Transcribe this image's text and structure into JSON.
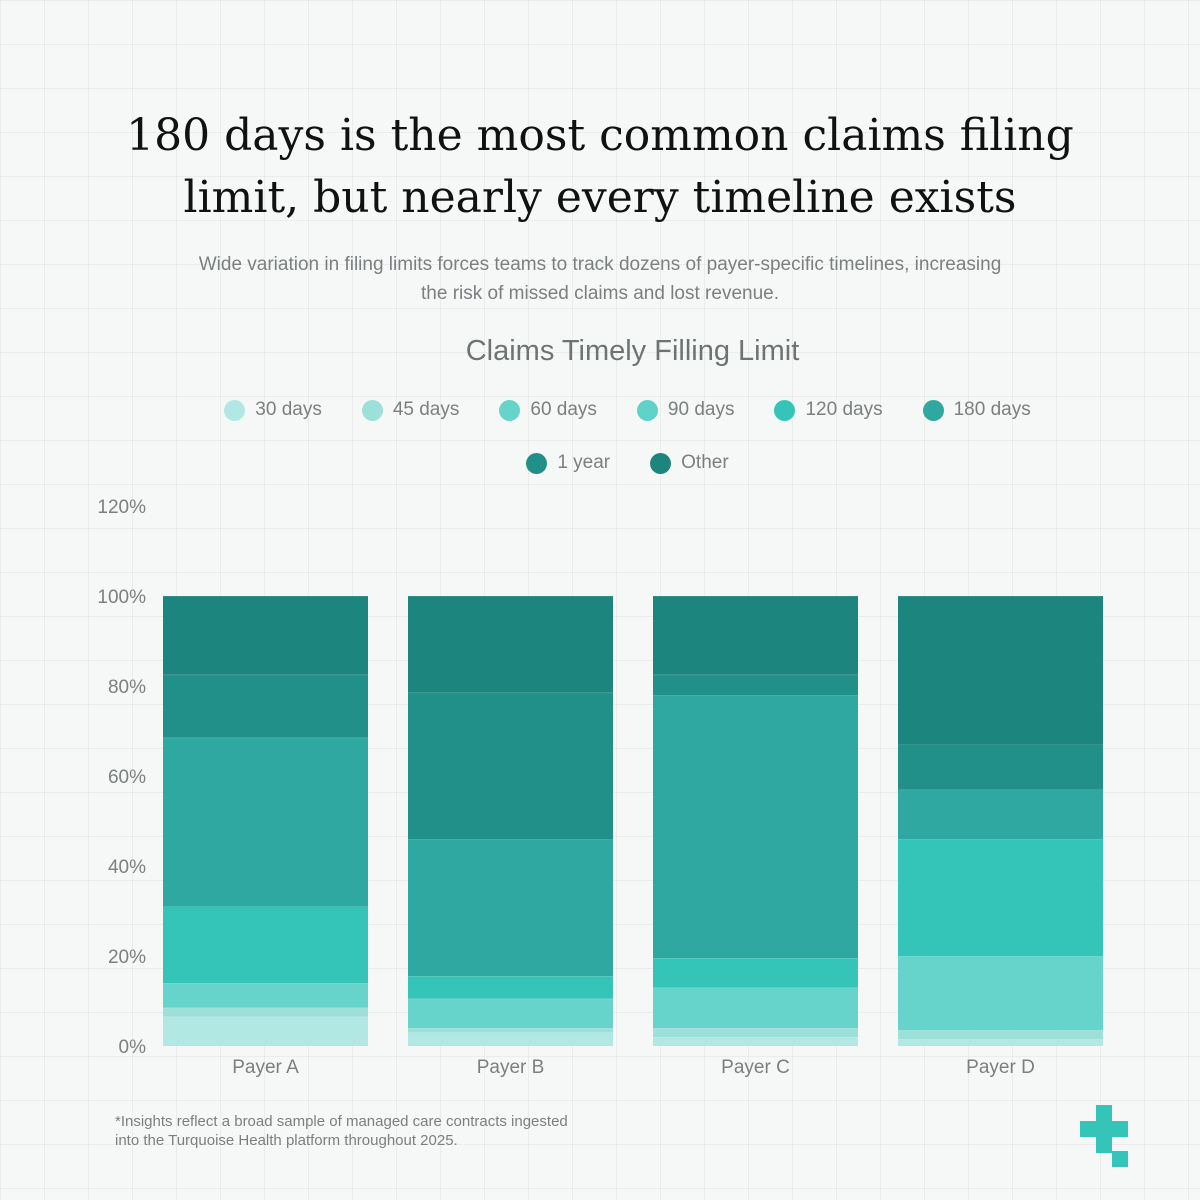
{
  "header": {
    "title_line1": "180 days is the most common claims filing",
    "title_line2": "limit, but nearly every timeline exists",
    "subtitle_line1": "Wide variation in filing limits forces teams to track dozens of payer-specific timelines, increasing",
    "subtitle_line2": "the risk of missed claims and lost revenue."
  },
  "footnote": {
    "line1": "*Insights reflect a broad sample of managed care contracts ingested",
    "line2": "into the Turquoise Health platform throughout 2025."
  },
  "chart_data": {
    "type": "bar",
    "stacked": true,
    "title": "Claims Timely Filling Limit",
    "xlabel": "",
    "ylabel": "",
    "ylim": [
      0,
      120
    ],
    "yticks": [
      "0%",
      "20%",
      "40%",
      "60%",
      "80%",
      "100%",
      "120%"
    ],
    "grid": false,
    "legend_position": "top",
    "categories": [
      "Payer A",
      "Payer B",
      "Payer C",
      "Payer D"
    ],
    "series": [
      {
        "name": "30 days",
        "color": "#b2e8e4",
        "values": [
          6.5,
          3.0,
          2.0,
          1.5
        ]
      },
      {
        "name": "45 days",
        "color": "#9de0da",
        "values": [
          2.0,
          1.0,
          2.0,
          2.0
        ]
      },
      {
        "name": "60 days",
        "color": "#66d4ca",
        "values": [
          5.5,
          6.5,
          9.0,
          16.5
        ]
      },
      {
        "name": "90 days",
        "color": "#5fd3c9",
        "values": [
          0,
          0,
          0,
          0
        ]
      },
      {
        "name": "120 days",
        "color": "#35c5b8",
        "values": [
          17.0,
          5.0,
          6.5,
          26.0
        ]
      },
      {
        "name": "180 days",
        "color": "#2ea8a0",
        "values": [
          37.5,
          30.5,
          58.5,
          11.0
        ]
      },
      {
        "name": "1 year",
        "color": "#209088",
        "values": [
          14.0,
          32.5,
          4.5,
          10.0
        ]
      },
      {
        "name": "Other",
        "color": "#1c857d",
        "values": [
          17.5,
          21.5,
          17.5,
          33.0
        ]
      }
    ]
  }
}
